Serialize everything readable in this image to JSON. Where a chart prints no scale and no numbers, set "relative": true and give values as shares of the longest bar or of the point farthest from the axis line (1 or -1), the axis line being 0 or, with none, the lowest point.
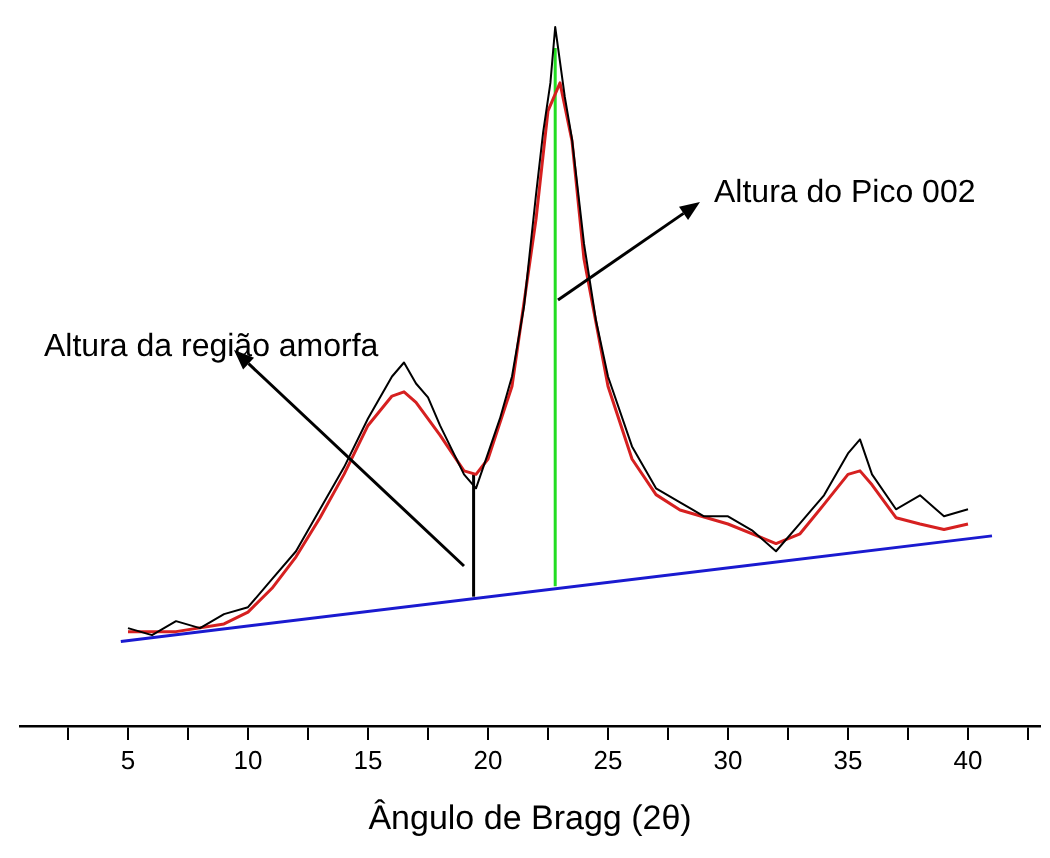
{
  "chart_data": {
    "type": "line",
    "relative": true,
    "xlabel": "Ângulo de Bragg (2θ)",
    "annotations": [
      "Altura da região amorfa",
      "Altura do Pico 002"
    ],
    "xlim": [
      0.5,
      43
    ],
    "xticks": [
      {
        "value": 2.5,
        "label": null
      },
      5,
      {
        "value": 7.5,
        "label": null
      },
      10,
      {
        "value": 12.5,
        "label": null
      },
      15,
      {
        "value": 17.5,
        "label": null
      },
      20,
      {
        "value": 22.5,
        "label": null
      },
      25,
      {
        "value": 27.5,
        "label": null
      },
      30,
      {
        "value": 32.5,
        "label": null
      },
      35,
      {
        "value": 37.5,
        "label": null
      },
      40,
      {
        "value": 42.5,
        "label": null
      }
    ],
    "grid": false,
    "legend": false,
    "marker": "none",
    "line_style": "solid",
    "series": [
      {
        "color": "#000000",
        "x": [
          5,
          6,
          7,
          8,
          9,
          10,
          11,
          12,
          13,
          14,
          15,
          15.5,
          16,
          16.5,
          17,
          17.5,
          18,
          19,
          19.5,
          20,
          20.5,
          21,
          21.5,
          22,
          22.3,
          22.6,
          22.8,
          23,
          23.2,
          23.5,
          24,
          24.5,
          25,
          26,
          27,
          28,
          29,
          30,
          31,
          32,
          33,
          34,
          35,
          35.5,
          36,
          37,
          38,
          39,
          40
        ],
        "values": [
          0.14,
          0.13,
          0.15,
          0.14,
          0.16,
          0.17,
          0.21,
          0.25,
          0.31,
          0.37,
          0.44,
          0.47,
          0.5,
          0.52,
          0.49,
          0.47,
          0.43,
          0.36,
          0.34,
          0.39,
          0.44,
          0.5,
          0.6,
          0.76,
          0.85,
          0.92,
          1.0,
          0.95,
          0.9,
          0.84,
          0.69,
          0.58,
          0.5,
          0.4,
          0.34,
          0.32,
          0.3,
          0.3,
          0.28,
          0.25,
          0.29,
          0.33,
          0.39,
          0.41,
          0.36,
          0.31,
          0.33,
          0.3,
          0.31
        ]
      },
      {
        "color": "#d62020",
        "x": [
          5,
          7,
          9,
          10,
          11,
          12,
          13,
          14,
          15,
          16,
          16.5,
          17,
          18,
          19,
          19.5,
          20,
          21,
          22,
          22.5,
          23,
          23.5,
          24,
          25,
          26,
          27,
          28,
          30,
          32,
          33,
          34,
          35,
          35.5,
          36,
          37,
          38,
          39,
          40
        ],
        "values": [
          0.135,
          0.135,
          0.146,
          0.163,
          0.197,
          0.242,
          0.298,
          0.36,
          0.43,
          0.472,
          0.478,
          0.463,
          0.416,
          0.365,
          0.36,
          0.382,
          0.486,
          0.725,
          0.88,
          0.92,
          0.837,
          0.668,
          0.486,
          0.382,
          0.331,
          0.309,
          0.289,
          0.261,
          0.275,
          0.317,
          0.36,
          0.365,
          0.345,
          0.298,
          0.289,
          0.281,
          0.289
        ]
      },
      {
        "color": "#1a1ad0",
        "x": [
          4.7,
          41
        ],
        "values": [
          0.121,
          0.272
        ]
      },
      {
        "color": "#000000",
        "x": [
          19.4,
          19.4
        ],
        "values": [
          0.185,
          0.36
        ]
      },
      {
        "color": "#22dd22",
        "x": [
          22.8,
          22.8
        ],
        "values": [
          0.2,
          0.97
        ]
      }
    ]
  }
}
